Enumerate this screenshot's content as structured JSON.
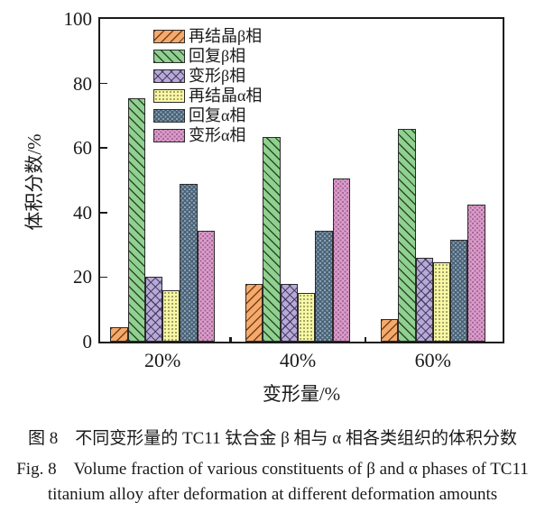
{
  "chart_data": {
    "type": "bar",
    "categories": [
      "20%",
      "40%",
      "60%"
    ],
    "series": [
      {
        "name": "再结晶β相",
        "color": "#F5A96B",
        "hatch": "diag-up",
        "values": [
          4.5,
          18,
          7
        ]
      },
      {
        "name": "回复β相",
        "color": "#8FD18F",
        "hatch": "diag-down",
        "values": [
          75.5,
          63.5,
          66
        ]
      },
      {
        "name": "变形β相",
        "color": "#B7A9D7",
        "hatch": "cross",
        "values": [
          20,
          18,
          26
        ]
      },
      {
        "name": "再结晶α相",
        "color": "#F8F7A3",
        "hatch": "dots",
        "values": [
          16,
          15,
          24.5
        ]
      },
      {
        "name": "回复α相",
        "color": "#4A6377",
        "hatch": "dots-light",
        "values": [
          49,
          34.5,
          31.5
        ]
      },
      {
        "name": "变形α相",
        "color": "#DA9CCA",
        "hatch": "dots-dark",
        "values": [
          34.5,
          50.5,
          42.5
        ]
      }
    ],
    "xlabel": "变形量/%",
    "ylabel": "体积分数/%",
    "ylim": [
      0,
      100
    ],
    "yticks": [
      0,
      20,
      40,
      60,
      80,
      100
    ],
    "grid": false,
    "legend_position": "upper-left-inside",
    "frame_color": "#1a1a1a",
    "bar_edge_color": "#2b2b2b"
  },
  "caption": {
    "zh": "图 8　不同变形量的 TC11 钛合金 β 相与 α 相各类组织的体积分数",
    "en_line1": "Fig. 8　Volume fraction of various constituents of β and α phases of TC11",
    "en_line2": "titanium alloy after deformation at different deformation amounts"
  }
}
